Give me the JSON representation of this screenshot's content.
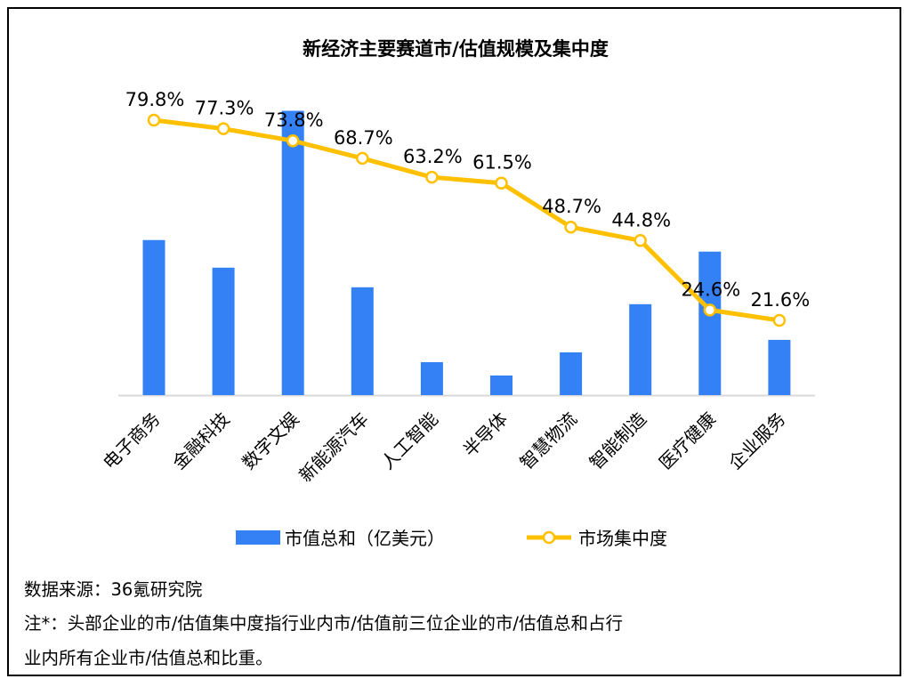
{
  "chart_data": {
    "type": "bar+line",
    "title": "新经济主要赛道市/估值规模及集中度",
    "categories": [
      "电子商务",
      "金融科技",
      "数字文娱",
      "新能源汽车",
      "人工智能",
      "半导体",
      "智慧物流",
      "智能制造",
      "医疗健康",
      "企业服务"
    ],
    "series": [
      {
        "name": "市值总和（亿美元）",
        "type": "bar",
        "color": "#3381F5",
        "values": [
          174,
          143,
          319,
          121,
          37,
          22,
          48,
          102,
          161,
          62
        ],
        "ylim": [
          0,
          386
        ]
      },
      {
        "name": "市场集中度",
        "type": "line",
        "color": "#FFC000",
        "values": [
          79.8,
          77.3,
          73.8,
          68.7,
          63.2,
          61.5,
          48.7,
          44.8,
          24.6,
          21.6
        ],
        "labels": [
          "79.8%",
          "77.3%",
          "73.8%",
          "68.7%",
          "63.2%",
          "61.5%",
          "48.7%",
          "44.8%",
          "24.6%",
          "21.6%"
        ],
        "ylim": [
          0,
          100
        ]
      }
    ],
    "legend": "bottom",
    "grid": false
  },
  "footer": {
    "source": "数据来源：36氪研究院",
    "note_line1": "注*：头部企业的市/估值集中度指行业内市/估值前三位企业的市/估值总和占行",
    "note_line2": "业内所有企业市/估值总和比重。"
  }
}
